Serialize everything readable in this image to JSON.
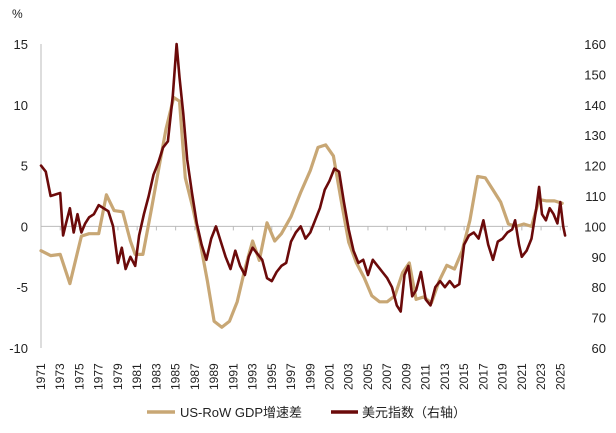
{
  "chart_data": {
    "type": "line",
    "left_unit": "%",
    "left_axis": {
      "min": -10,
      "max": 15,
      "ticks": [
        15,
        10,
        5,
        0,
        -5,
        -10
      ]
    },
    "right_axis": {
      "min": 60,
      "max": 160,
      "ticks": [
        160,
        150,
        140,
        130,
        120,
        110,
        100,
        90,
        80,
        70,
        60
      ]
    },
    "x_range": [
      1971,
      2025.8
    ],
    "x_tick_labels": [
      "1971",
      "1973",
      "1975",
      "1977",
      "1979",
      "1981",
      "1983",
      "1985",
      "1987",
      "1989",
      "1991",
      "1993",
      "1995",
      "1997",
      "1999",
      "2001",
      "2003",
      "2005",
      "2007",
      "2009",
      "2011",
      "2013",
      "2015",
      "2017",
      "2019",
      "2021",
      "2023",
      "2025"
    ],
    "colors": {
      "gdp": "#C8A775",
      "usd": "#6B0A0A",
      "axis": "#BBBBBB",
      "text": "#222222"
    },
    "series": [
      {
        "name": "US-RoW GDP增速差",
        "axis": "left",
        "points": [
          [
            1971.0,
            -2.0
          ],
          [
            1972.0,
            -2.4
          ],
          [
            1973.0,
            -2.3
          ],
          [
            1974.0,
            -4.7
          ],
          [
            1975.2,
            -0.8
          ],
          [
            1976.0,
            -0.6
          ],
          [
            1977.0,
            -0.6
          ],
          [
            1977.8,
            2.6
          ],
          [
            1978.6,
            1.3
          ],
          [
            1979.5,
            1.2
          ],
          [
            1980.3,
            -1.2
          ],
          [
            1980.8,
            -2.3
          ],
          [
            1981.6,
            -2.3
          ],
          [
            1982.5,
            1.5
          ],
          [
            1983.3,
            5.0
          ],
          [
            1984.0,
            8.0
          ],
          [
            1984.8,
            10.6
          ],
          [
            1985.4,
            10.3
          ],
          [
            1986.0,
            4.0
          ],
          [
            1986.8,
            1.5
          ],
          [
            1987.6,
            -1.5
          ],
          [
            1988.3,
            -4.5
          ],
          [
            1989.0,
            -7.8
          ],
          [
            1989.8,
            -8.3
          ],
          [
            1990.6,
            -7.8
          ],
          [
            1991.4,
            -6.2
          ],
          [
            1992.2,
            -3.5
          ],
          [
            1993.0,
            -1.2
          ],
          [
            1993.7,
            -2.8
          ],
          [
            1994.5,
            0.3
          ],
          [
            1995.3,
            -1.2
          ],
          [
            1996.0,
            -0.6
          ],
          [
            1997.0,
            0.8
          ],
          [
            1998.0,
            2.8
          ],
          [
            1999.0,
            4.6
          ],
          [
            1999.8,
            6.5
          ],
          [
            2000.6,
            6.7
          ],
          [
            2001.4,
            5.8
          ],
          [
            2002.2,
            2.2
          ],
          [
            2003.0,
            -1.3
          ],
          [
            2003.8,
            -3.0
          ],
          [
            2004.6,
            -4.2
          ],
          [
            2005.4,
            -5.7
          ],
          [
            2006.2,
            -6.2
          ],
          [
            2007.0,
            -6.2
          ],
          [
            2007.8,
            -5.7
          ],
          [
            2008.6,
            -3.8
          ],
          [
            2009.3,
            -3.0
          ],
          [
            2010.0,
            -6.0
          ],
          [
            2010.8,
            -5.8
          ],
          [
            2011.6,
            -6.3
          ],
          [
            2012.4,
            -4.5
          ],
          [
            2013.2,
            -3.2
          ],
          [
            2014.0,
            -3.5
          ],
          [
            2014.8,
            -2.0
          ],
          [
            2015.6,
            0.5
          ],
          [
            2016.4,
            4.1
          ],
          [
            2017.2,
            4.0
          ],
          [
            2018.0,
            3.0
          ],
          [
            2018.8,
            2.0
          ],
          [
            2019.6,
            0.2
          ],
          [
            2020.4,
            0.0
          ],
          [
            2021.2,
            0.2
          ],
          [
            2022.0,
            0.0
          ],
          [
            2022.8,
            2.2
          ],
          [
            2023.6,
            2.1
          ],
          [
            2024.4,
            2.1
          ],
          [
            2025.2,
            1.9
          ]
        ]
      },
      {
        "name": "美元指数（右轴）",
        "axis": "right",
        "points": [
          [
            1971.0,
            120.0
          ],
          [
            1971.5,
            118.0
          ],
          [
            1972.0,
            110.0
          ],
          [
            1972.5,
            110.5
          ],
          [
            1973.0,
            111.0
          ],
          [
            1973.3,
            97.0
          ],
          [
            1973.6,
            101.0
          ],
          [
            1974.0,
            106.0
          ],
          [
            1974.4,
            98.0
          ],
          [
            1974.8,
            104.0
          ],
          [
            1975.2,
            98.0
          ],
          [
            1975.6,
            101.0
          ],
          [
            1976.0,
            103.0
          ],
          [
            1976.5,
            104.0
          ],
          [
            1977.0,
            107.0
          ],
          [
            1977.5,
            106.0
          ],
          [
            1978.0,
            105.0
          ],
          [
            1978.5,
            100.0
          ],
          [
            1979.0,
            88.0
          ],
          [
            1979.4,
            93.0
          ],
          [
            1979.8,
            86.0
          ],
          [
            1980.3,
            90.0
          ],
          [
            1980.8,
            87.0
          ],
          [
            1981.2,
            97.0
          ],
          [
            1981.7,
            104.0
          ],
          [
            1982.2,
            110.0
          ],
          [
            1982.7,
            117.0
          ],
          [
            1983.2,
            121.0
          ],
          [
            1983.7,
            126.0
          ],
          [
            1984.2,
            128.0
          ],
          [
            1984.7,
            143.0
          ],
          [
            1985.1,
            160.0
          ],
          [
            1985.4,
            149.0
          ],
          [
            1985.8,
            137.0
          ],
          [
            1986.2,
            122.0
          ],
          [
            1986.7,
            111.0
          ],
          [
            1987.2,
            101.0
          ],
          [
            1987.7,
            94.0
          ],
          [
            1988.2,
            89.0
          ],
          [
            1988.7,
            96.0
          ],
          [
            1989.2,
            100.0
          ],
          [
            1989.7,
            95.0
          ],
          [
            1990.2,
            90.0
          ],
          [
            1990.7,
            86.0
          ],
          [
            1991.2,
            92.0
          ],
          [
            1991.7,
            87.0
          ],
          [
            1992.2,
            84.0
          ],
          [
            1992.6,
            90.0
          ],
          [
            1993.0,
            93.0
          ],
          [
            1993.5,
            91.0
          ],
          [
            1994.0,
            89.0
          ],
          [
            1994.5,
            83.0
          ],
          [
            1995.0,
            82.0
          ],
          [
            1995.5,
            85.0
          ],
          [
            1996.0,
            87.0
          ],
          [
            1996.5,
            88.0
          ],
          [
            1997.0,
            95.0
          ],
          [
            1997.5,
            98.0
          ],
          [
            1998.0,
            100.0
          ],
          [
            1998.5,
            96.0
          ],
          [
            1999.0,
            98.0
          ],
          [
            1999.5,
            102.0
          ],
          [
            2000.0,
            106.0
          ],
          [
            2000.5,
            112.0
          ],
          [
            2001.0,
            115.0
          ],
          [
            2001.5,
            119.0
          ],
          [
            2002.0,
            118.0
          ],
          [
            2002.5,
            108.0
          ],
          [
            2003.0,
            99.0
          ],
          [
            2003.5,
            92.0
          ],
          [
            2004.0,
            88.0
          ],
          [
            2004.5,
            89.0
          ],
          [
            2005.0,
            84.0
          ],
          [
            2005.5,
            89.0
          ],
          [
            2006.0,
            87.0
          ],
          [
            2006.5,
            85.0
          ],
          [
            2007.0,
            83.0
          ],
          [
            2007.5,
            80.0
          ],
          [
            2008.0,
            74.0
          ],
          [
            2008.4,
            72.0
          ],
          [
            2008.8,
            84.0
          ],
          [
            2009.2,
            87.0
          ],
          [
            2009.6,
            77.0
          ],
          [
            2010.0,
            79.0
          ],
          [
            2010.5,
            85.0
          ],
          [
            2011.0,
            76.0
          ],
          [
            2011.5,
            74.0
          ],
          [
            2012.0,
            80.0
          ],
          [
            2012.5,
            82.0
          ],
          [
            2013.0,
            80.0
          ],
          [
            2013.5,
            82.0
          ],
          [
            2014.0,
            80.0
          ],
          [
            2014.5,
            81.0
          ],
          [
            2015.0,
            94.0
          ],
          [
            2015.5,
            97.0
          ],
          [
            2016.0,
            98.0
          ],
          [
            2016.5,
            96.0
          ],
          [
            2017.0,
            102.0
          ],
          [
            2017.5,
            94.0
          ],
          [
            2018.0,
            89.0
          ],
          [
            2018.5,
            95.0
          ],
          [
            2019.0,
            96.0
          ],
          [
            2019.5,
            98.0
          ],
          [
            2020.0,
            99.0
          ],
          [
            2020.3,
            102.0
          ],
          [
            2020.7,
            94.0
          ],
          [
            2021.0,
            90.0
          ],
          [
            2021.5,
            92.0
          ],
          [
            2022.0,
            96.0
          ],
          [
            2022.5,
            106.0
          ],
          [
            2022.8,
            113.0
          ],
          [
            2023.1,
            104.0
          ],
          [
            2023.5,
            102.0
          ],
          [
            2023.9,
            106.0
          ],
          [
            2024.3,
            104.0
          ],
          [
            2024.7,
            101.0
          ],
          [
            2025.0,
            108.0
          ],
          [
            2025.3,
            100.0
          ],
          [
            2025.5,
            97.0
          ]
        ]
      }
    ],
    "legend": [
      {
        "label": "US-RoW GDP增速差",
        "series": 0
      },
      {
        "label": "美元指数（右轴）",
        "series": 1
      }
    ]
  }
}
